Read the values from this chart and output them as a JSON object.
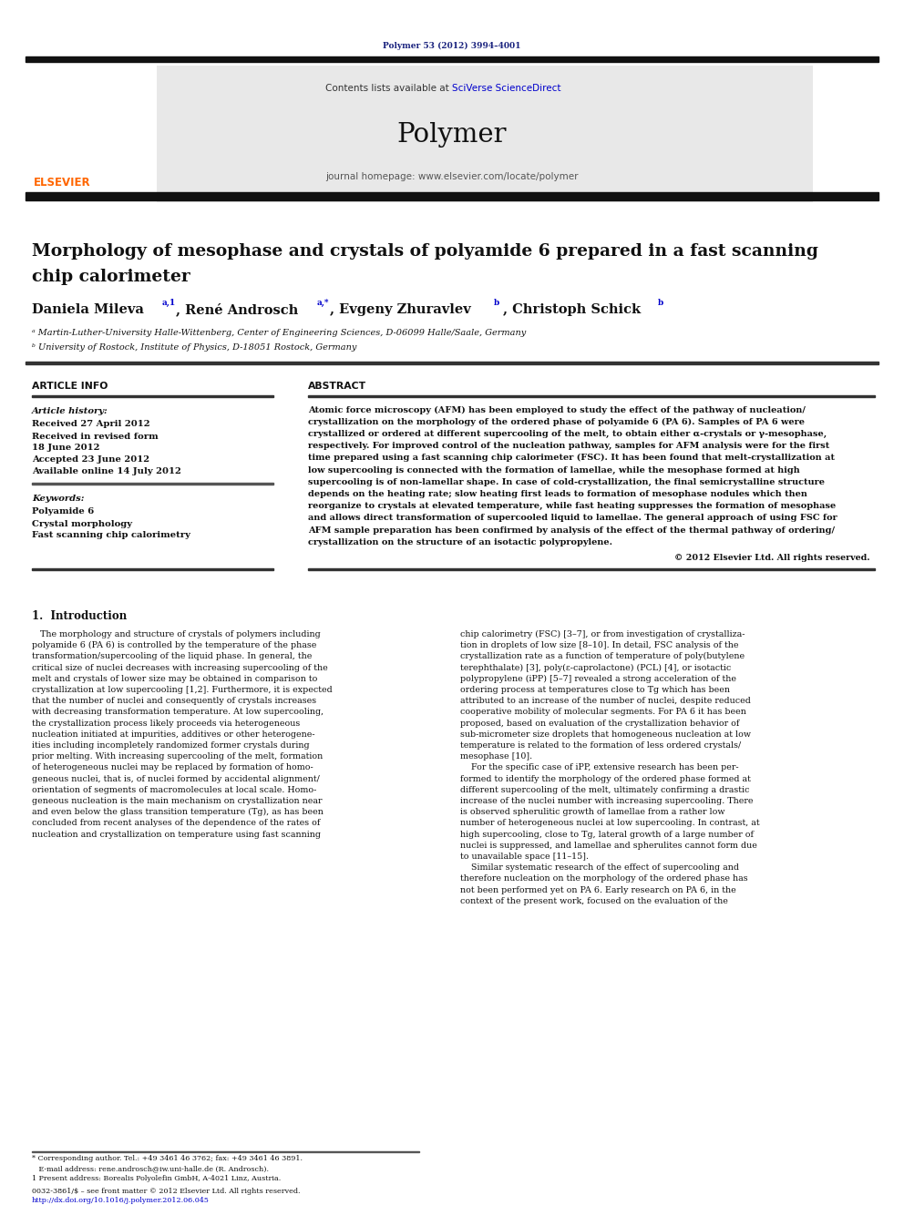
{
  "page_width": 9.92,
  "page_height": 13.23,
  "bg_color": "#ffffff",
  "journal_ref": "Polymer 53 (2012) 3994–4001",
  "journal_ref_color": "#1a237e",
  "header_bg": "#e8e8e8",
  "sciverse_color": "#0000cc",
  "journal_name": "Polymer",
  "journal_url": "journal homepage: www.elsevier.com/locate/polymer",
  "affil_a": "ᵃ Martin-Luther-University Halle-Wittenberg, Center of Engineering Sciences, D-06099 Halle/Saale, Germany",
  "affil_b": "ᵇ University of Rostock, Institute of Physics, D-18051 Rostock, Germany",
  "article_info_header": "ARTICLE INFO",
  "abstract_header": "ABSTRACT",
  "article_history_label": "Article history:",
  "received1": "Received 27 April 2012",
  "received2": "Received in revised form",
  "received2b": "18 June 2012",
  "accepted": "Accepted 23 June 2012",
  "available": "Available online 14 July 2012",
  "keywords_label": "Keywords:",
  "kw1": "Polyamide 6",
  "kw2": "Crystal morphology",
  "kw3": "Fast scanning chip calorimetry",
  "abstract_text": "Atomic force microscopy (AFM) has been employed to study the effect of the pathway of nucleation/\ncrystallization on the morphology of the ordered phase of polyamide 6 (PA 6). Samples of PA 6 were\ncrystallized or ordered at different supercooling of the melt, to obtain either α-crystals or γ-mesophase,\nrespectively. For improved control of the nucleation pathway, samples for AFM analysis were for the first\ntime prepared using a fast scanning chip calorimeter (FSC). It has been found that melt-crystallization at\nlow supercooling is connected with the formation of lamellae, while the mesophase formed at high\nsupercooling is of non-lamellar shape. In case of cold-crystallization, the final semicrystalline structure\ndepends on the heating rate; slow heating first leads to formation of mesophase nodules which then\nreorganize to crystals at elevated temperature, while fast heating suppresses the formation of mesophase\nand allows direct transformation of supercooled liquid to lamellae. The general approach of using FSC for\nAFM sample preparation has been confirmed by analysis of the effect of the thermal pathway of ordering/\ncrystallization on the structure of an isotactic polypropylene.",
  "copyright": "© 2012 Elsevier Ltd. All rights reserved.",
  "intro_header": "1.  Introduction",
  "intro_col1": "   The morphology and structure of crystals of polymers including\npolyamide 6 (PA 6) is controlled by the temperature of the phase\ntransformation/supercooling of the liquid phase. In general, the\ncritical size of nuclei decreases with increasing supercooling of the\nmelt and crystals of lower size may be obtained in comparison to\ncrystallization at low supercooling [1,2]. Furthermore, it is expected\nthat the number of nuclei and consequently of crystals increases\nwith decreasing transformation temperature. At low supercooling,\nthe crystallization process likely proceeds via heterogeneous\nnucleation initiated at impurities, additives or other heterogene-\nities including incompletely randomized former crystals during\nprior melting. With increasing supercooling of the melt, formation\nof heterogeneous nuclei may be replaced by formation of homo-\ngeneous nuclei, that is, of nuclei formed by accidental alignment/\norientation of segments of macromolecules at local scale. Homo-\ngeneous nucleation is the main mechanism on crystallization near\nand even below the glass transition temperature (Tg), as has been\nconcluded from recent analyses of the dependence of the rates of\nnucleation and crystallization on temperature using fast scanning",
  "intro_col2": "chip calorimetry (FSC) [3–7], or from investigation of crystalliza-\ntion in droplets of low size [8–10]. In detail, FSC analysis of the\ncrystallization rate as a function of temperature of poly(butylene\nterephthalate) [3], poly(ε-caprolactone) (PCL) [4], or isotactic\npolypropylene (iPP) [5–7] revealed a strong acceleration of the\nordering process at temperatures close to Tg which has been\nattributed to an increase of the number of nuclei, despite reduced\ncooperative mobility of molecular segments. For PA 6 it has been\nproposed, based on evaluation of the crystallization behavior of\nsub-micrometer size droplets that homogeneous nucleation at low\ntemperature is related to the formation of less ordered crystals/\nmesophase [10].\n    For the specific case of iPP, extensive research has been per-\nformed to identify the morphology of the ordered phase formed at\ndifferent supercooling of the melt, ultimately confirming a drastic\nincrease of the nuclei number with increasing supercooling. There\nis observed spherulitic growth of lamellae from a rather low\nnumber of heterogeneous nuclei at low supercooling. In contrast, at\nhigh supercooling, close to Tg, lateral growth of a large number of\nnuclei is suppressed, and lamellae and spherulites cannot form due\nto unavailable space [11–15].\n    Similar systematic research of the effect of supercooling and\ntherefore nucleation on the morphology of the ordered phase has\nnot been performed yet on PA 6. Early research on PA 6, in the\ncontext of the present work, focused on the evaluation of the",
  "footer_star": "* Corresponding author. Tel.: +49 3461 46 3762; fax: +49 3461 46 3891.",
  "footer_email": "   E-mail address: rene.androsch@iw.uni-halle.de (R. Androsch).",
  "footer_1": "1 Present address: Borealis Polyolefin GmbH, A-4021 Linz, Austria.",
  "footer_issn": "0032-3861/$ – see front matter © 2012 Elsevier Ltd. All rights reserved.",
  "footer_doi": "http://dx.doi.org/10.1016/j.polymer.2012.06.045",
  "elsevier_color": "#FF6600"
}
